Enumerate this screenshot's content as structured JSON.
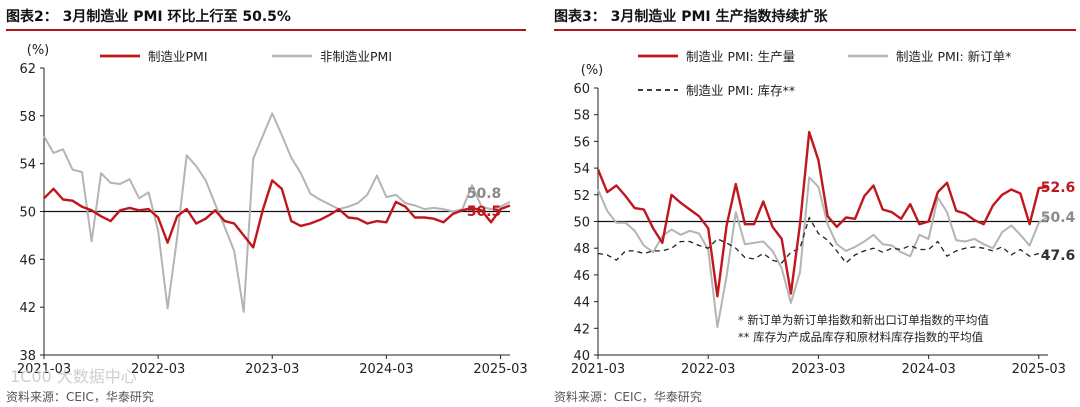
{
  "left": {
    "title": "图表2： 3月制造业 PMI 环比上行至 50.5%",
    "source": "资料来源：CEIC，华泰研究"
  },
  "right": {
    "title": "图表3： 3月制造业 PMI 生产指数持续扩张",
    "source": "资料来源：CEIC，华泰研究"
  },
  "watermark": "1C00 大数据中心",
  "colors": {
    "accent": "#c0161e",
    "secondary": "#b4b4b4",
    "dashed": "#222222",
    "rule": "#b5121b"
  },
  "chart_data": [
    {
      "type": "line",
      "title": "3月制造业 PMI 环比上行至 50.5%",
      "ylabel": "(%)",
      "ylim": [
        38,
        62
      ],
      "yticks": [
        38,
        42,
        46,
        50,
        54,
        58,
        62
      ],
      "xlim": [
        0,
        49
      ],
      "xticks": [
        {
          "x": 0,
          "label": "2021-03"
        },
        {
          "x": 12,
          "label": "2022-03"
        },
        {
          "x": 24,
          "label": "2023-03"
        },
        {
          "x": 36,
          "label": "2024-03"
        },
        {
          "x": 48,
          "label": "2025-03"
        }
      ],
      "reference_line": 50,
      "series": [
        {
          "name": "制造业PMI",
          "style": "red",
          "values": [
            51.1,
            51.9,
            51.0,
            50.9,
            50.4,
            50.1,
            49.6,
            49.2,
            50.1,
            50.3,
            50.1,
            50.2,
            49.5,
            47.4,
            49.6,
            50.2,
            49.0,
            49.4,
            50.1,
            49.2,
            49.0,
            48.0,
            47.0,
            50.1,
            52.6,
            51.9,
            49.2,
            48.8,
            49.0,
            49.3,
            49.7,
            50.2,
            49.5,
            49.4,
            49.0,
            49.2,
            49.1,
            50.8,
            50.4,
            49.5,
            49.5,
            49.4,
            49.1,
            49.8,
            50.1,
            50.3,
            50.1,
            49.1,
            50.2,
            50.5
          ],
          "end_label": "50.5"
        },
        {
          "name": "非制造业PMI",
          "style": "gray",
          "values": [
            56.3,
            54.9,
            55.2,
            53.5,
            53.3,
            47.5,
            53.2,
            52.4,
            52.3,
            52.7,
            51.1,
            51.6,
            48.4,
            41.9,
            47.8,
            54.7,
            53.8,
            52.6,
            50.6,
            48.7,
            46.7,
            41.6,
            54.4,
            56.3,
            58.2,
            56.4,
            54.5,
            53.2,
            51.5,
            51.0,
            50.6,
            50.2,
            50.4,
            50.7,
            51.4,
            53.0,
            51.2,
            51.4,
            50.7,
            50.5,
            50.2,
            50.3,
            50.2,
            50.0,
            50.2,
            52.2,
            50.4,
            50.2,
            50.4,
            50.8
          ],
          "end_label": "50.8"
        }
      ]
    },
    {
      "type": "line",
      "title": "3月制造业 PMI 生产指数持续扩张",
      "ylabel": "(%)",
      "ylim": [
        40,
        60
      ],
      "yticks": [
        40,
        42,
        44,
        46,
        48,
        50,
        52,
        54,
        56,
        58,
        60
      ],
      "xlim": [
        0,
        49
      ],
      "xticks": [
        {
          "x": 0,
          "label": "2021-03"
        },
        {
          "x": 12,
          "label": "2022-03"
        },
        {
          "x": 24,
          "label": "2023-03"
        },
        {
          "x": 36,
          "label": "2024-03"
        },
        {
          "x": 48,
          "label": "2025-03"
        }
      ],
      "reference_line": 50,
      "series": [
        {
          "name": "制造业 PMI: 生产量",
          "style": "red",
          "values": [
            53.9,
            52.2,
            52.7,
            51.9,
            51.0,
            50.9,
            49.5,
            48.4,
            52.0,
            51.4,
            50.9,
            50.4,
            49.5,
            44.4,
            49.7,
            52.8,
            49.8,
            49.8,
            51.5,
            49.6,
            48.7,
            44.6,
            49.8,
            56.7,
            54.6,
            50.4,
            49.6,
            50.3,
            50.2,
            51.9,
            52.7,
            50.9,
            50.7,
            50.2,
            51.3,
            49.8,
            50.0,
            52.2,
            52.9,
            50.8,
            50.6,
            50.1,
            49.8,
            51.2,
            52.0,
            52.4,
            52.1,
            49.8,
            52.5,
            52.6
          ],
          "end_label": "52.6"
        },
        {
          "name": "制造业 PMI: 新订单*",
          "style": "gray",
          "values": [
            52.4,
            50.8,
            49.9,
            49.9,
            49.3,
            48.2,
            47.7,
            48.9,
            49.4,
            49.0,
            49.3,
            49.1,
            47.9,
            42.1,
            45.9,
            50.7,
            48.3,
            48.4,
            48.5,
            47.8,
            46.5,
            43.9,
            46.2,
            53.3,
            52.6,
            49.8,
            48.3,
            47.8,
            48.1,
            48.5,
            49.0,
            48.3,
            48.2,
            47.7,
            47.4,
            49.0,
            48.7,
            51.8,
            50.7,
            48.6,
            48.5,
            48.7,
            48.3,
            48.0,
            49.2,
            49.7,
            49.0,
            48.2,
            49.9,
            50.4
          ],
          "end_label": "50.4"
        },
        {
          "name": "制造业 PMI: 库存**",
          "style": "dashed",
          "values": [
            47.6,
            47.5,
            47.1,
            47.8,
            47.8,
            47.6,
            47.8,
            47.8,
            48.0,
            48.5,
            48.5,
            48.2,
            48.0,
            48.7,
            48.4,
            48.0,
            47.3,
            47.2,
            47.6,
            47.1,
            46.9,
            47.7,
            48.0,
            50.3,
            49.1,
            48.6,
            47.8,
            46.9,
            47.5,
            47.8,
            48.0,
            47.7,
            48.0,
            47.9,
            48.2,
            47.9,
            47.9,
            48.5,
            47.4,
            47.8,
            48.0,
            48.1,
            48.0,
            47.8,
            48.1,
            47.5,
            47.9,
            47.4,
            47.6,
            47.6
          ],
          "end_label": "47.6"
        }
      ],
      "notes": [
        "*  新订单为新订单指数和新出口订单指数的平均值",
        "** 库存为产成品库存和原材料库存指数的平均值"
      ]
    }
  ]
}
